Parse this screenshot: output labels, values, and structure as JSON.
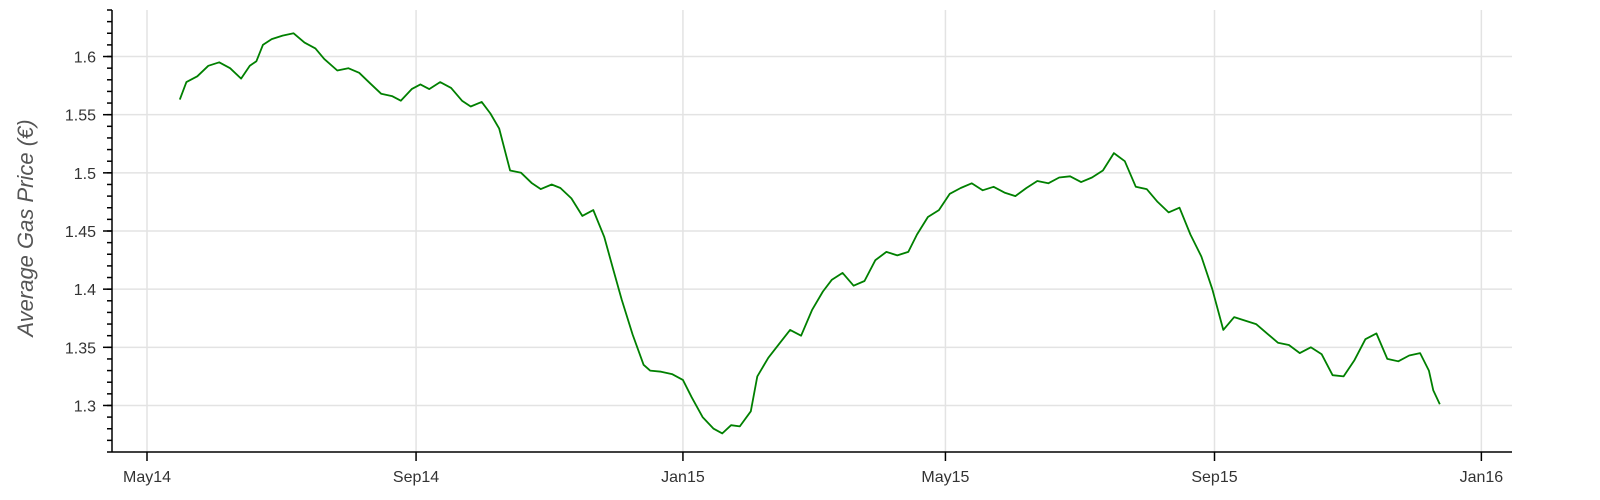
{
  "chart_data": {
    "type": "line",
    "title": "",
    "xlabel": "",
    "ylabel": "Average Gas Price (€)",
    "xlim": [
      "2014-04-15",
      "2016-01-15"
    ],
    "ylim": [
      1.26,
      1.64
    ],
    "grid": true,
    "x_ticks": [
      {
        "date": "2014-05-01",
        "label": "May14"
      },
      {
        "date": "2014-09-01",
        "label": "Sep14"
      },
      {
        "date": "2015-01-01",
        "label": "Jan15"
      },
      {
        "date": "2015-05-01",
        "label": "May15"
      },
      {
        "date": "2015-09-01",
        "label": "Sep15"
      },
      {
        "date": "2016-01-01",
        "label": "Jan16"
      }
    ],
    "y_ticks": [
      {
        "value": 1.3,
        "label": "1.3"
      },
      {
        "value": 1.35,
        "label": "1.35"
      },
      {
        "value": 1.4,
        "label": "1.4"
      },
      {
        "value": 1.45,
        "label": "1.45"
      },
      {
        "value": 1.5,
        "label": "1.5"
      },
      {
        "value": 1.55,
        "label": "1.55"
      },
      {
        "value": 1.6,
        "label": "1.6"
      }
    ],
    "series": [
      {
        "color": "#008000",
        "x": [
          "2014-05-16",
          "2014-05-19",
          "2014-05-24",
          "2014-05-29",
          "2014-06-03",
          "2014-06-08",
          "2014-06-13",
          "2014-06-17",
          "2014-06-20",
          "2014-06-23",
          "2014-06-27",
          "2014-07-02",
          "2014-07-07",
          "2014-07-12",
          "2014-07-17",
          "2014-07-21",
          "2014-07-27",
          "2014-08-01",
          "2014-08-06",
          "2014-08-11",
          "2014-08-16",
          "2014-08-21",
          "2014-08-25",
          "2014-08-30",
          "2014-09-03",
          "2014-09-07",
          "2014-09-12",
          "2014-09-17",
          "2014-09-22",
          "2014-09-26",
          "2014-10-01",
          "2014-10-05",
          "2014-10-09",
          "2014-10-14",
          "2014-10-19",
          "2014-10-24",
          "2014-10-28",
          "2014-11-02",
          "2014-11-06",
          "2014-11-11",
          "2014-11-16",
          "2014-11-21",
          "2014-11-26",
          "2014-11-30",
          "2014-12-04",
          "2014-12-09",
          "2014-12-14",
          "2014-12-17",
          "2014-12-22",
          "2014-12-27",
          "2015-01-01",
          "2015-01-05",
          "2015-01-10",
          "2015-01-15",
          "2015-01-19",
          "2015-01-23",
          "2015-01-27",
          "2015-02-01",
          "2015-02-04",
          "2015-02-09",
          "2015-02-14",
          "2015-02-19",
          "2015-02-24",
          "2015-03-01",
          "2015-03-06",
          "2015-03-10",
          "2015-03-15",
          "2015-03-20",
          "2015-03-25",
          "2015-03-30",
          "2015-04-04",
          "2015-04-09",
          "2015-04-14",
          "2015-04-18",
          "2015-04-23",
          "2015-04-28",
          "2015-05-03",
          "2015-05-08",
          "2015-05-13",
          "2015-05-18",
          "2015-05-23",
          "2015-05-28",
          "2015-06-02",
          "2015-06-07",
          "2015-06-12",
          "2015-06-17",
          "2015-06-22",
          "2015-06-27",
          "2015-07-02",
          "2015-07-07",
          "2015-07-12",
          "2015-07-17",
          "2015-07-22",
          "2015-07-27",
          "2015-08-01",
          "2015-08-06",
          "2015-08-11",
          "2015-08-16",
          "2015-08-21",
          "2015-08-26",
          "2015-08-31",
          "2015-09-05",
          "2015-09-10",
          "2015-09-15",
          "2015-09-20",
          "2015-09-25",
          "2015-09-30",
          "2015-10-05",
          "2015-10-10",
          "2015-10-15",
          "2015-10-20",
          "2015-10-25",
          "2015-10-30",
          "2015-11-04",
          "2015-11-09",
          "2015-11-14",
          "2015-11-19",
          "2015-11-24",
          "2015-11-29",
          "2015-12-04",
          "2015-12-08",
          "2015-12-10",
          "2015-12-13"
        ],
        "y": [
          1.563,
          1.578,
          1.583,
          1.592,
          1.595,
          1.59,
          1.581,
          1.592,
          1.596,
          1.61,
          1.615,
          1.618,
          1.62,
          1.612,
          1.607,
          1.598,
          1.588,
          1.59,
          1.586,
          1.577,
          1.568,
          1.566,
          1.562,
          1.572,
          1.576,
          1.572,
          1.578,
          1.573,
          1.562,
          1.557,
          1.561,
          1.551,
          1.538,
          1.502,
          1.5,
          1.491,
          1.486,
          1.49,
          1.487,
          1.478,
          1.463,
          1.468,
          1.445,
          1.418,
          1.391,
          1.361,
          1.335,
          1.33,
          1.329,
          1.327,
          1.322,
          1.307,
          1.29,
          1.28,
          1.276,
          1.283,
          1.282,
          1.295,
          1.325,
          1.341,
          1.353,
          1.365,
          1.36,
          1.382,
          1.398,
          1.408,
          1.414,
          1.403,
          1.407,
          1.425,
          1.432,
          1.429,
          1.432,
          1.447,
          1.462,
          1.468,
          1.482,
          1.487,
          1.491,
          1.485,
          1.488,
          1.483,
          1.48,
          1.487,
          1.493,
          1.491,
          1.496,
          1.497,
          1.492,
          1.496,
          1.502,
          1.517,
          1.51,
          1.488,
          1.486,
          1.475,
          1.466,
          1.47,
          1.447,
          1.428,
          1.4,
          1.365,
          1.376,
          1.373,
          1.37,
          1.362,
          1.354,
          1.352,
          1.345,
          1.35,
          1.344,
          1.326,
          1.325,
          1.339,
          1.357,
          1.362,
          1.34,
          1.338,
          1.343,
          1.345,
          1.33,
          1.313,
          1.301
        ]
      }
    ]
  }
}
